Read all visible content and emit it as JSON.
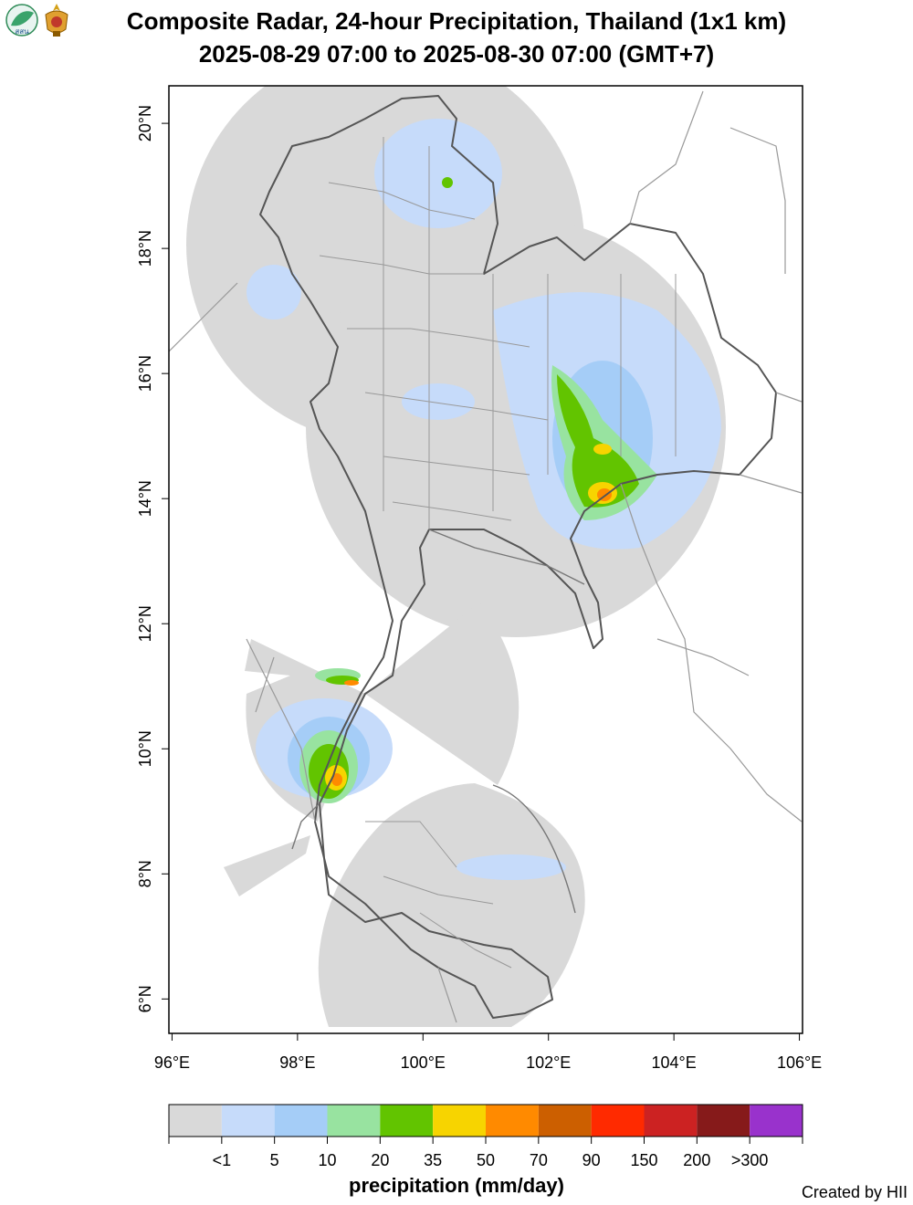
{
  "header": {
    "title_line1": "Composite Radar, 24-hour Precipitation, Thailand (1x1 km)",
    "title_line2": "2025-08-29 07:00 to 2025-08-30 07:00 (GMT+7)",
    "logo_left_text": "สสน",
    "logo_left_icon": "leaf-logo-icon",
    "logo_right_icon": "royal-emblem-icon"
  },
  "map": {
    "x_range": [
      95.95,
      106.05
    ],
    "y_range": [
      5.45,
      20.6
    ],
    "x_ticks": [
      {
        "value": 96,
        "label": "96°E"
      },
      {
        "value": 98,
        "label": "98°E"
      },
      {
        "value": 100,
        "label": "100°E"
      },
      {
        "value": 102,
        "label": "102°E"
      },
      {
        "value": 104,
        "label": "104°E"
      },
      {
        "value": 106,
        "label": "106°E"
      }
    ],
    "y_ticks": [
      {
        "value": 6,
        "label": "6°N"
      },
      {
        "value": 8,
        "label": "8°N"
      },
      {
        "value": 10,
        "label": "10°N"
      },
      {
        "value": 12,
        "label": "12°N"
      },
      {
        "value": 14,
        "label": "14°N"
      },
      {
        "value": 16,
        "label": "16°N"
      },
      {
        "value": 18,
        "label": "18°N"
      },
      {
        "value": 20,
        "label": "20°N"
      }
    ],
    "radar_coverage_color": "#d9d9d9",
    "border_color": "#555555",
    "province_color": "#999999"
  },
  "legend": {
    "title": "precipitation (mm/day)",
    "colors": [
      "#d9d9d9",
      "#c6dbfa",
      "#a5cdf7",
      "#98e3a0",
      "#62c400",
      "#f7d400",
      "#ff8a00",
      "#cc5f00",
      "#ff2a00",
      "#cc2222",
      "#861a1a",
      "#9932cc"
    ],
    "labels": [
      "<1",
      "5",
      "10",
      "20",
      "35",
      "50",
      "70",
      "90",
      "150",
      "200",
      ">300"
    ]
  },
  "footer": {
    "credit": "Created by HII"
  }
}
